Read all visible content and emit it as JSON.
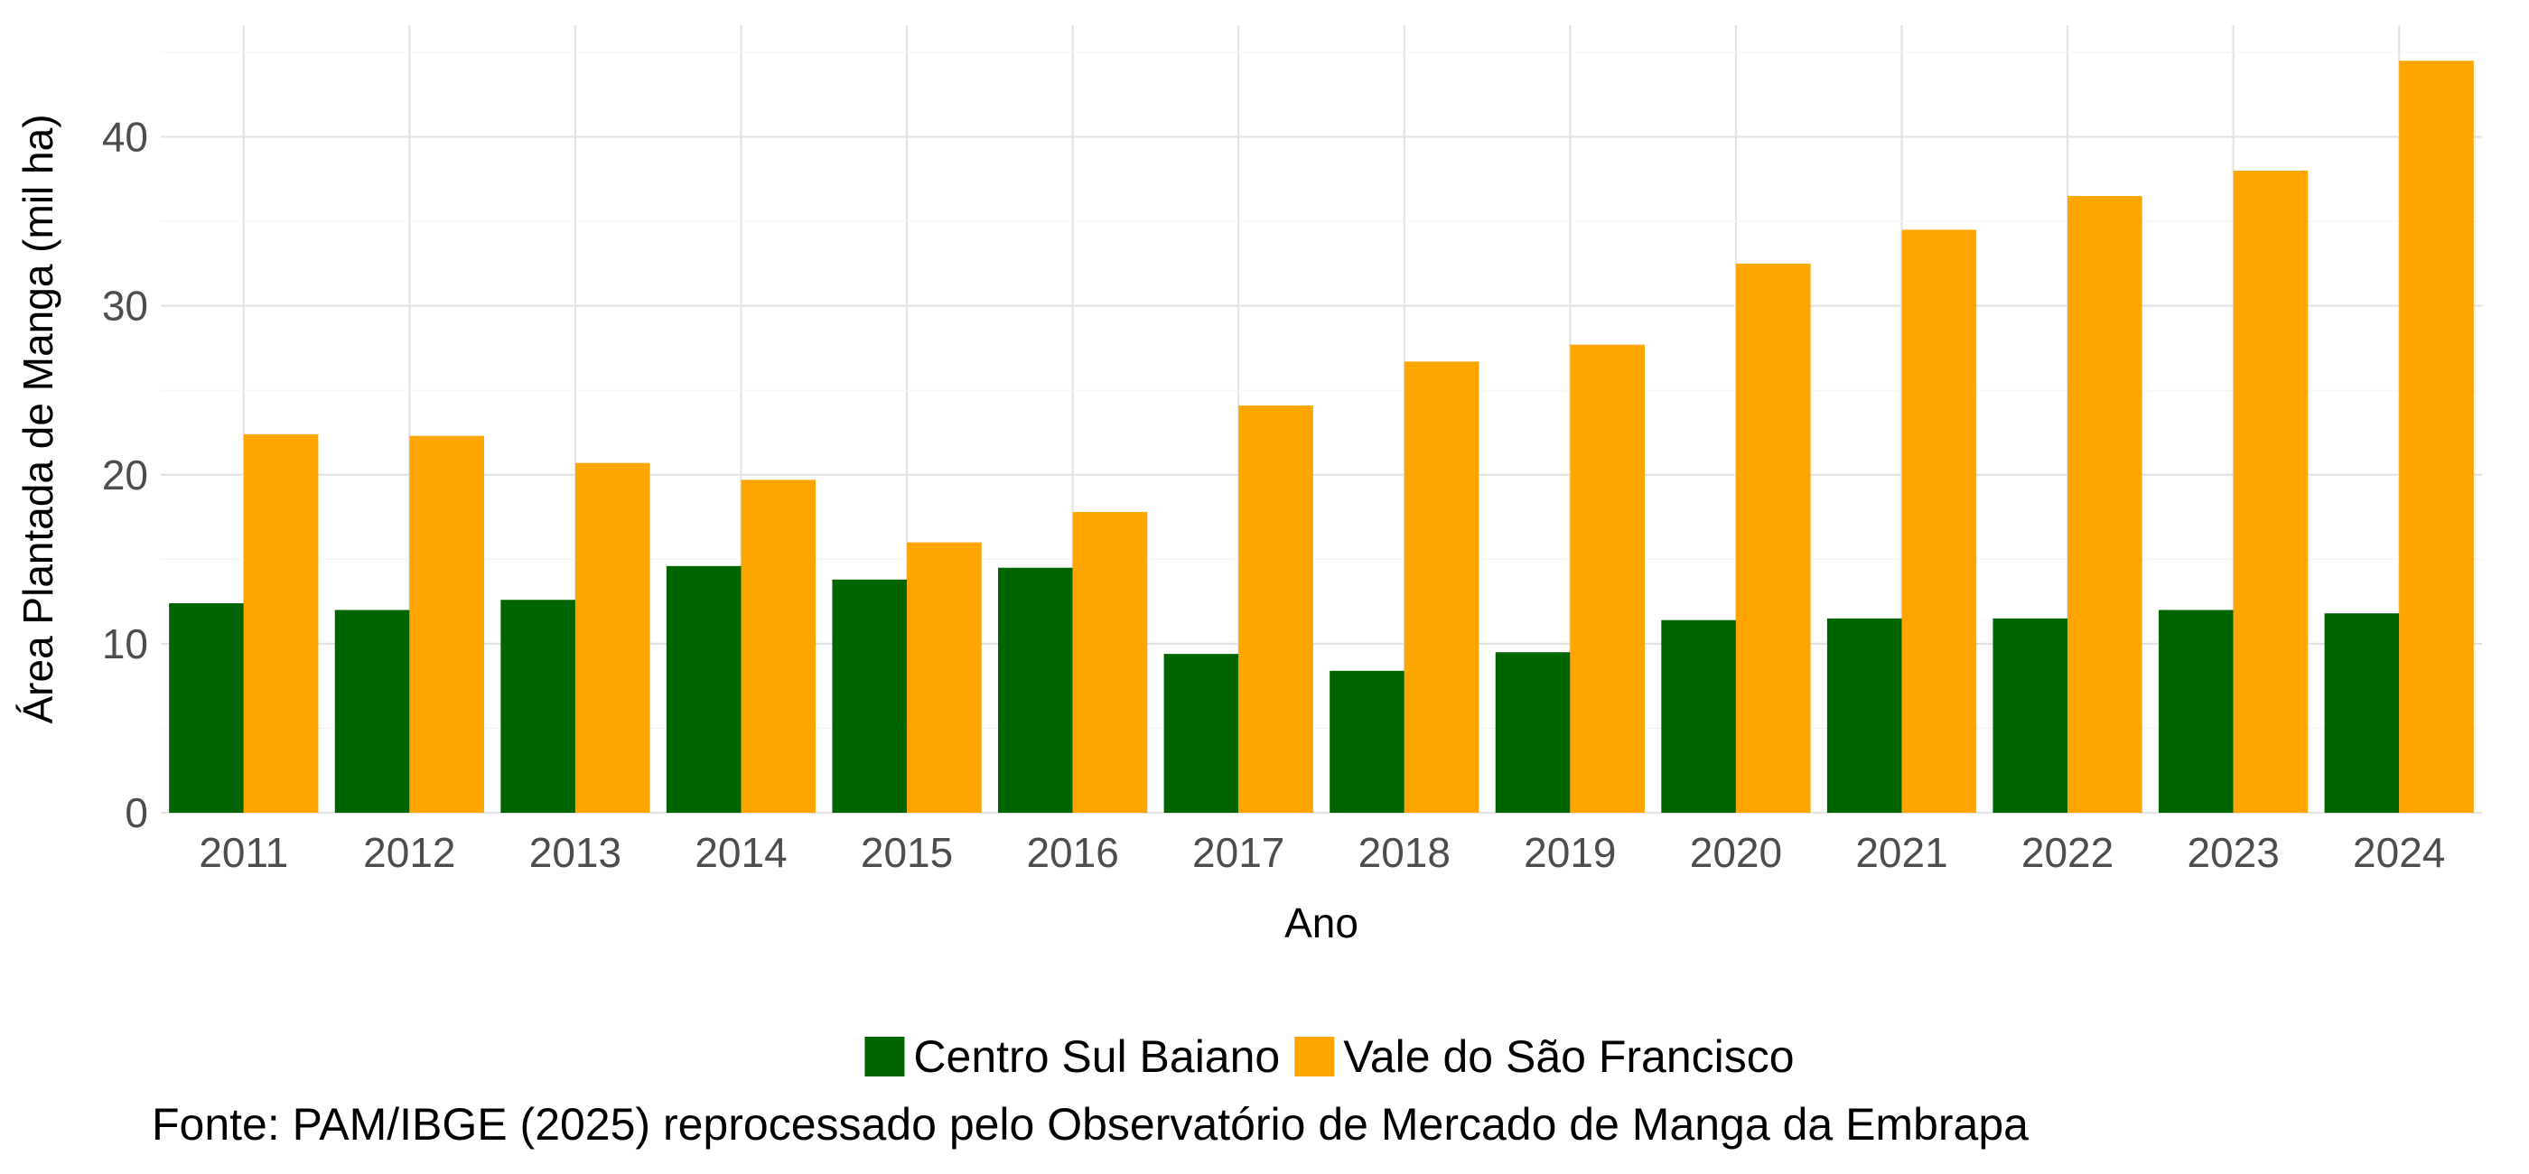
{
  "chart_data": {
    "type": "bar",
    "title": "",
    "xlabel": "Ano",
    "ylabel": "Área Plantada de Manga (mil ha)",
    "categories": [
      "2011",
      "2012",
      "2013",
      "2014",
      "2015",
      "2016",
      "2017",
      "2018",
      "2019",
      "2020",
      "2021",
      "2022",
      "2023",
      "2024"
    ],
    "series": [
      {
        "name": "Centro Sul Baiano",
        "color": "#006400",
        "values": [
          12.4,
          12.0,
          12.6,
          14.6,
          13.8,
          14.5,
          9.4,
          8.4,
          9.5,
          11.4,
          11.5,
          11.5,
          12.0,
          11.8
        ]
      },
      {
        "name": "Vale do São Francisco",
        "color": "#FFA500",
        "values": [
          22.4,
          22.3,
          20.7,
          19.7,
          16.0,
          17.8,
          24.1,
          26.7,
          27.7,
          32.5,
          34.5,
          36.5,
          38.0,
          44.5
        ]
      }
    ],
    "ylim": [
      0,
      46.6
    ],
    "yticks": [
      0,
      10,
      20,
      30,
      40
    ],
    "grid": true,
    "legend_position": "bottom"
  },
  "caption": "Fonte: PAM/IBGE (2025) reprocessado pelo Observatório de Mercado de Manga da Embrapa"
}
